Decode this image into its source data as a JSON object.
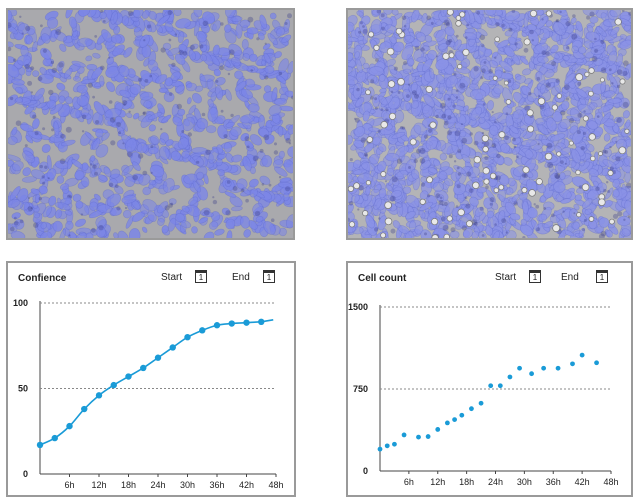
{
  "images": {
    "left": {
      "label": "cell-micrograph-low-density",
      "tint": "#7c86e6"
    },
    "right": {
      "label": "cell-micrograph-high-density",
      "tint": "#8a92e6"
    }
  },
  "controls": {
    "start_label": "Start",
    "end_label": "End",
    "calendar_day": "1"
  },
  "colors": {
    "series": "#1a9bd7",
    "grid": "#888888"
  },
  "chart_data": [
    {
      "type": "line",
      "title": "Confience",
      "ylim": [
        0,
        100
      ],
      "yticks": [
        "0",
        "50",
        "100"
      ],
      "xticks": [
        "6h",
        "12h",
        "18h",
        "24h",
        "30h",
        "36h",
        "42h",
        "48h"
      ],
      "xlim": [
        0,
        48
      ],
      "gridlines": [
        50,
        100
      ],
      "x": [
        0,
        3,
        6,
        9,
        12,
        15,
        18,
        21,
        24,
        27,
        30,
        33,
        36,
        39,
        42,
        45
      ],
      "y": [
        17,
        21,
        28,
        38,
        46,
        52,
        57,
        62,
        68,
        74,
        80,
        84,
        87,
        88,
        88.5,
        89
      ]
    },
    {
      "type": "scatter",
      "title": "Cell count",
      "ylim": [
        0,
        1500
      ],
      "yticks": [
        "0",
        "750",
        "1500"
      ],
      "xticks": [
        "6h",
        "12h",
        "18h",
        "24h",
        "30h",
        "36h",
        "42h",
        "48h"
      ],
      "xlim": [
        0,
        48
      ],
      "gridlines": [
        750,
        1500
      ],
      "x": [
        0,
        1.5,
        3,
        5,
        8,
        10,
        12,
        14,
        15.5,
        17,
        19,
        21,
        23,
        25,
        27,
        29,
        31.5,
        34,
        37,
        40,
        42,
        45
      ],
      "y": [
        200,
        230,
        245,
        330,
        310,
        315,
        380,
        440,
        470,
        510,
        570,
        620,
        780,
        780,
        860,
        940,
        890,
        940,
        940,
        980,
        1060,
        990
      ]
    }
  ]
}
